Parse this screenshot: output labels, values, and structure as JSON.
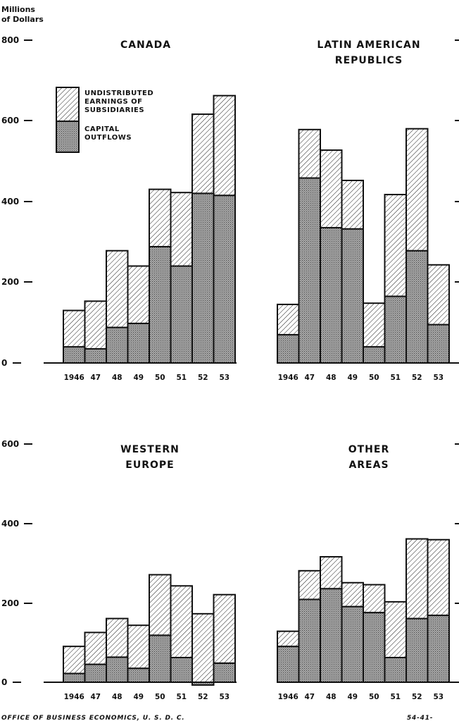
{
  "page": {
    "footer_left": "OFFICE OF BUSINESS ECONOMICS, U. S. D. C.",
    "footer_right": "54-41-"
  },
  "axis": {
    "unit_line1": "Millions",
    "unit_line2": "of Dollars",
    "top_ticks": [
      "0",
      "200",
      "400",
      "600",
      "800"
    ],
    "bottom_ticks": [
      "0",
      "200",
      "400",
      "600"
    ]
  },
  "legend": {
    "undistributed_lines": [
      "UNDISTRIBUTED",
      "EARNINGS OF",
      "SUBSIDIARIES"
    ],
    "capital_lines": [
      "CAPITAL",
      "OUTFLOWS"
    ]
  },
  "colors": {
    "ink": "#111111",
    "capital_fill": "#9a9a9a",
    "earnings_fill": "#ffffff"
  },
  "chart_data": [
    {
      "type": "bar",
      "stacked": true,
      "title": "CANADA",
      "title_lines": [
        "CANADA"
      ],
      "categories": [
        "1946",
        "47",
        "48",
        "49",
        "50",
        "51",
        "52",
        "53"
      ],
      "ylim": [
        0,
        800
      ],
      "series": [
        {
          "name": "CAPITAL OUTFLOWS",
          "values": [
            40,
            35,
            88,
            98,
            288,
            240,
            420,
            415
          ]
        },
        {
          "name": "UNDISTRIBUTED EARNINGS OF SUBSIDIARIES",
          "values": [
            90,
            118,
            190,
            142,
            142,
            182,
            196,
            247
          ]
        }
      ]
    },
    {
      "type": "bar",
      "stacked": true,
      "title": "LATIN AMERICAN REPUBLICS",
      "title_lines": [
        "LATIN AMERICAN",
        "REPUBLICS"
      ],
      "categories": [
        "1946",
        "47",
        "48",
        "49",
        "50",
        "51",
        "52",
        "53"
      ],
      "ylim": [
        0,
        800
      ],
      "series": [
        {
          "name": "CAPITAL OUTFLOWS",
          "values": [
            70,
            458,
            335,
            332,
            40,
            165,
            278,
            95
          ]
        },
        {
          "name": "UNDISTRIBUTED EARNINGS OF SUBSIDIARIES",
          "values": [
            75,
            120,
            192,
            120,
            108,
            252,
            302,
            148
          ]
        }
      ]
    },
    {
      "type": "bar",
      "stacked": true,
      "title": "WESTERN EUROPE",
      "title_lines": [
        "WESTERN",
        "EUROPE"
      ],
      "categories": [
        "1946",
        "47",
        "48",
        "49",
        "50",
        "51",
        "52",
        "53"
      ],
      "ylim": [
        0,
        600
      ],
      "series": [
        {
          "name": "CAPITAL OUTFLOWS",
          "values": [
            22,
            45,
            63,
            35,
            118,
            62,
            -7,
            48
          ]
        },
        {
          "name": "UNDISTRIBUTED EARNINGS OF SUBSIDIARIES",
          "values": [
            68,
            80,
            97,
            108,
            152,
            180,
            172,
            172
          ]
        }
      ]
    },
    {
      "type": "bar",
      "stacked": true,
      "title": "OTHER AREAS",
      "title_lines": [
        "OTHER",
        "AREAS"
      ],
      "categories": [
        "1946",
        "47",
        "48",
        "49",
        "50",
        "51",
        "52",
        "53"
      ],
      "ylim": [
        0,
        600
      ],
      "series": [
        {
          "name": "CAPITAL OUTFLOWS",
          "values": [
            90,
            208,
            235,
            190,
            175,
            62,
            160,
            168
          ]
        },
        {
          "name": "UNDISTRIBUTED EARNINGS OF SUBSIDIARIES",
          "values": [
            38,
            72,
            80,
            60,
            70,
            140,
            200,
            190
          ]
        }
      ]
    }
  ]
}
